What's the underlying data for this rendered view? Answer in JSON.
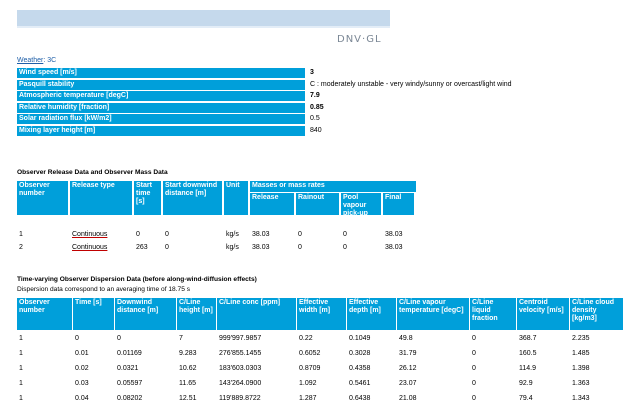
{
  "header": {
    "brand": "DNV·GL",
    "bar_color": "#c5d9ec",
    "accent": "#009fda"
  },
  "weather": {
    "label_prefix": "Weather",
    "label_suffix": ": 3C",
    "rows": [
      {
        "label": "Wind speed [m/s]",
        "value": "3",
        "bold": true
      },
      {
        "label": "Pasquill stability",
        "value": "C : moderately unstable - very windy/sunny or overcast/light wind",
        "bold": false
      },
      {
        "label": "Atmospheric temperature [degC]",
        "value": "7.9",
        "bold": true
      },
      {
        "label": "Relative humidity [fraction]",
        "value": "0.85",
        "bold": true
      },
      {
        "label": "Solar radiation flux [kW/m2]",
        "value": "0.5",
        "bold": false
      },
      {
        "label": "Mixing layer height [m]",
        "value": "840",
        "bold": false
      }
    ]
  },
  "release": {
    "title": "Observer Release Data and Observer Mass Data",
    "group_header": "Masses or mass rates",
    "columns": [
      "Observer number",
      "Release type",
      "Start time [s]",
      "Start downwind distance [m]",
      "Unit",
      "Release",
      "Rainout",
      "Pool vapour pick-up",
      "Final"
    ],
    "rows": [
      [
        "1",
        "Continuous",
        "0",
        "0",
        "kg/s",
        "38.03",
        "0",
        "0",
        "38.03"
      ],
      [
        "2",
        "Continuous",
        "263",
        "0",
        "kg/s",
        "38.03",
        "0",
        "0",
        "38.03"
      ]
    ]
  },
  "dispersion": {
    "title": "Time-varying Observer Dispersion Data (before along-wind-diffusion effects)",
    "subtitle": "Dispersion data correspond to an averaging time of 18.75 s",
    "columns": [
      "Observer number",
      "Time [s]",
      "Downwind distance [m]",
      "C/Line height [m]",
      "C/Line conc [ppm]",
      "Effective width [m]",
      "Effective depth [m]",
      "C/Line vapour temperature [degC]",
      "C/Line liquid fraction",
      "Centroid velocity [m/s]",
      "C/Line cloud density [kg/m3]"
    ],
    "rows": [
      [
        "1",
        "0",
        "0",
        "7",
        "999'997.9857",
        "0.22",
        "0.1049",
        "49.8",
        "0",
        "368.7",
        "2.235"
      ],
      [
        "1",
        "0.01",
        "0.01169",
        "9.283",
        "276'855.1455",
        "0.6052",
        "0.3028",
        "31.79",
        "0",
        "160.5",
        "1.485"
      ],
      [
        "1",
        "0.02",
        "0.0321",
        "10.62",
        "183'603.0303",
        "0.8709",
        "0.4358",
        "26.12",
        "0",
        "114.9",
        "1.398"
      ],
      [
        "1",
        "0.03",
        "0.05597",
        "11.65",
        "143'264.0900",
        "1.092",
        "0.5461",
        "23.07",
        "0",
        "92.9",
        "1.363"
      ],
      [
        "1",
        "0.04",
        "0.08202",
        "12.51",
        "119'889.8722",
        "1.287",
        "0.6438",
        "21.08",
        "0",
        "79.4",
        "1.343"
      ]
    ]
  }
}
